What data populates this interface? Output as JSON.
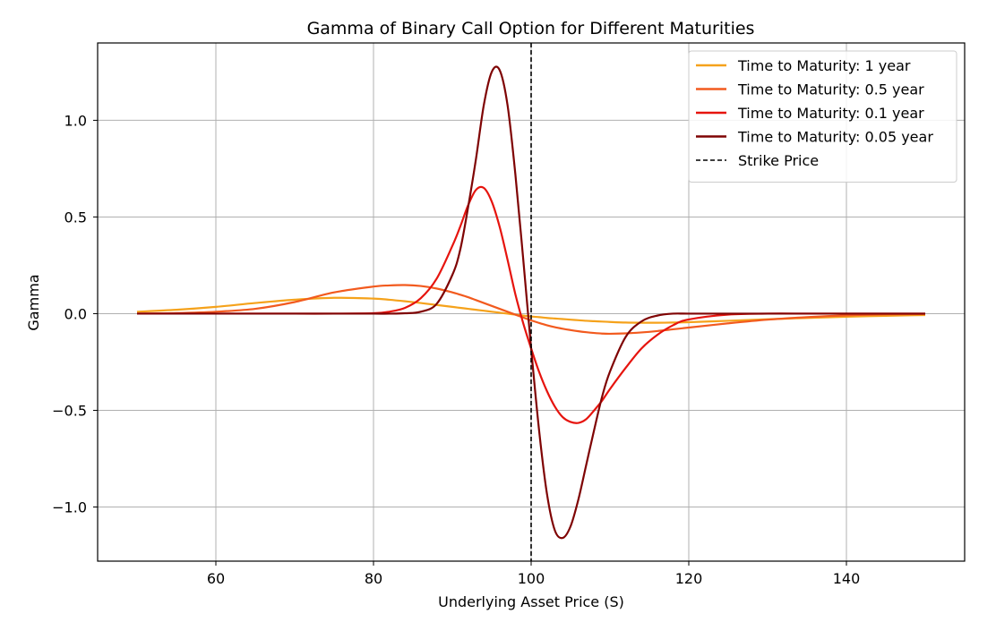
{
  "chart_data": {
    "type": "line",
    "title": "Gamma of Binary Call Option for Different Maturities",
    "xlabel": "Underlying Asset Price (S)",
    "ylabel": "Gamma",
    "xlim": [
      45,
      155
    ],
    "ylim": [
      -1.28,
      1.4
    ],
    "xticks": [
      60,
      80,
      100,
      120,
      140
    ],
    "xtick_labels": [
      "60",
      "80",
      "100",
      "120",
      "140"
    ],
    "yticks": [
      -1.0,
      -0.5,
      0.0,
      0.5,
      1.0
    ],
    "ytick_labels": [
      "−1.0",
      "−0.5",
      "0.0",
      "0.5",
      "1.0"
    ],
    "grid": true,
    "legend_position": "top-right",
    "x": [
      50,
      55,
      60,
      65,
      70,
      75,
      80,
      82,
      84,
      86,
      88,
      90,
      91,
      92,
      93,
      94,
      95,
      96,
      97,
      98,
      99,
      100,
      101,
      102,
      103,
      104,
      105,
      106,
      107,
      108,
      109,
      110,
      112,
      114,
      116,
      118,
      120,
      125,
      130,
      135,
      140,
      145,
      150
    ],
    "series": [
      {
        "name": "Time to Maturity: 1 year",
        "color": "#f5a21b",
        "values": [
          0.01,
          0.02,
          0.035,
          0.055,
          0.072,
          0.082,
          0.078,
          0.072,
          0.064,
          0.055,
          0.045,
          0.035,
          0.03,
          0.025,
          0.02,
          0.015,
          0.01,
          0.005,
          0.0,
          -0.005,
          -0.01,
          -0.015,
          -0.018,
          -0.022,
          -0.025,
          -0.028,
          -0.031,
          -0.034,
          -0.037,
          -0.039,
          -0.041,
          -0.043,
          -0.046,
          -0.047,
          -0.047,
          -0.046,
          -0.044,
          -0.037,
          -0.029,
          -0.022,
          -0.016,
          -0.011,
          -0.007
        ]
      },
      {
        "name": "Time to Maturity: 0.5 year",
        "color": "#f25a1e",
        "values": [
          0.0,
          0.003,
          0.01,
          0.025,
          0.06,
          0.11,
          0.14,
          0.146,
          0.148,
          0.143,
          0.13,
          0.11,
          0.098,
          0.085,
          0.07,
          0.055,
          0.04,
          0.025,
          0.01,
          -0.005,
          -0.02,
          -0.035,
          -0.048,
          -0.06,
          -0.07,
          -0.078,
          -0.085,
          -0.091,
          -0.096,
          -0.1,
          -0.103,
          -0.104,
          -0.102,
          -0.097,
          -0.09,
          -0.081,
          -0.072,
          -0.05,
          -0.031,
          -0.018,
          -0.009,
          -0.004,
          -0.002
        ]
      },
      {
        "name": "Time to Maturity: 0.1 year",
        "color": "#e6140e",
        "values": [
          0.0,
          0.0,
          0.0,
          0.0,
          0.0,
          0.0,
          0.002,
          0.01,
          0.03,
          0.08,
          0.18,
          0.35,
          0.45,
          0.56,
          0.64,
          0.65,
          0.58,
          0.45,
          0.28,
          0.1,
          -0.05,
          -0.18,
          -0.3,
          -0.4,
          -0.48,
          -0.535,
          -0.56,
          -0.565,
          -0.545,
          -0.5,
          -0.45,
          -0.39,
          -0.28,
          -0.18,
          -0.11,
          -0.06,
          -0.03,
          -0.005,
          0.0,
          0.0,
          0.0,
          0.0,
          0.0
        ]
      },
      {
        "name": "Time to Maturity: 0.05 year",
        "color": "#7f0404",
        "values": [
          0.0,
          0.0,
          0.0,
          0.0,
          0.0,
          0.0,
          0.0,
          0.0,
          0.002,
          0.01,
          0.05,
          0.2,
          0.33,
          0.55,
          0.8,
          1.08,
          1.25,
          1.26,
          1.08,
          0.72,
          0.28,
          -0.18,
          -0.6,
          -0.93,
          -1.12,
          -1.16,
          -1.1,
          -0.96,
          -0.78,
          -0.6,
          -0.43,
          -0.3,
          -0.12,
          -0.04,
          -0.01,
          0.0,
          0.0,
          0.0,
          0.0,
          0.0,
          0.0,
          0.0,
          0.0
        ]
      }
    ],
    "reference_lines": [
      {
        "name": "Strike Price",
        "orientation": "vertical",
        "x": 100,
        "color": "#000000",
        "style": "dashed"
      }
    ]
  }
}
